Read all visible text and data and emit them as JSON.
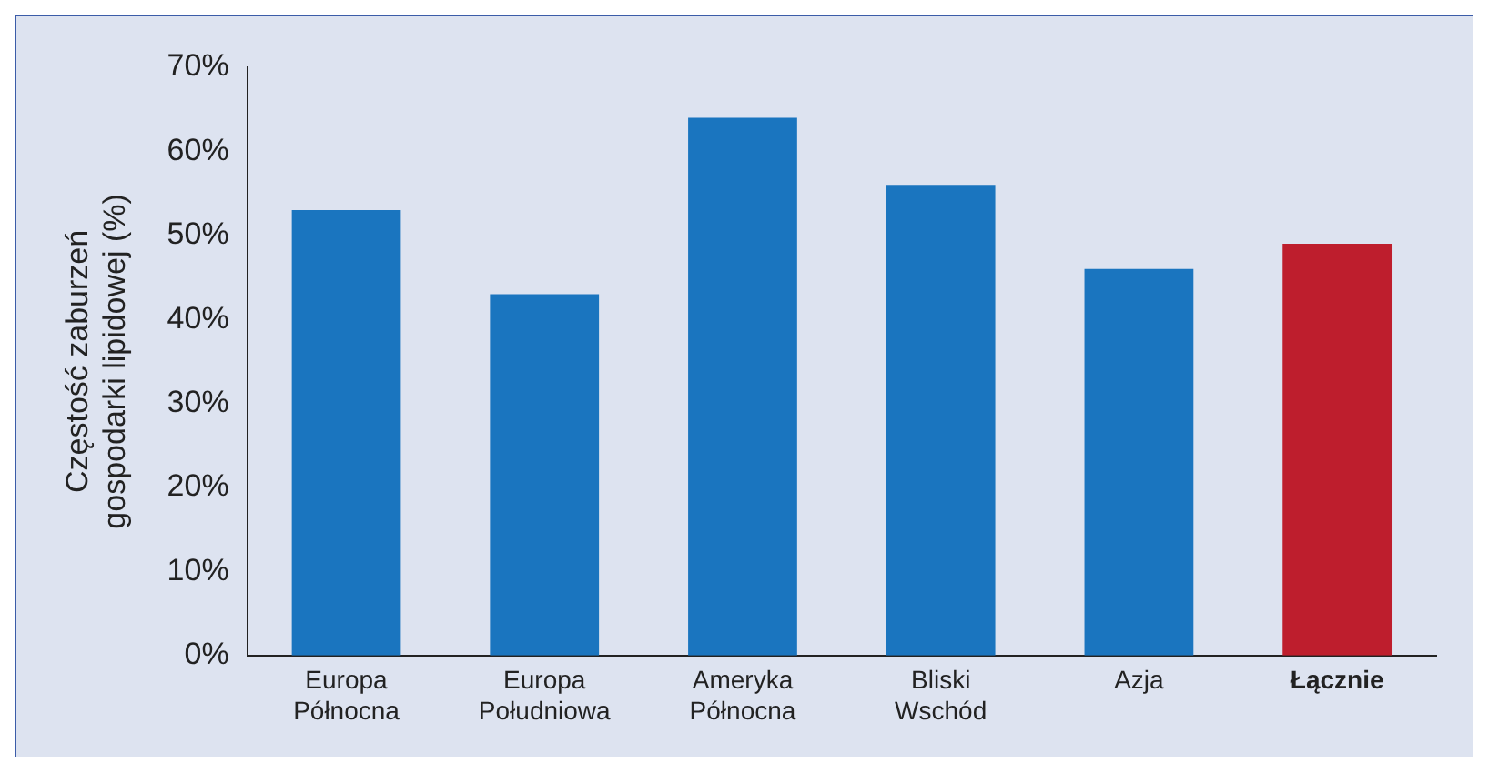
{
  "chart_data": {
    "type": "bar",
    "ylabel": "Częstość zaburzeń gospodarki lipidowej (%)",
    "categories": [
      "Europa Północna",
      "Europa Południowa",
      "Ameryka Północna",
      "Bliski Wschód",
      "Azja",
      "Łącznie"
    ],
    "values": [
      53,
      43,
      64,
      56,
      46,
      49
    ],
    "colors": [
      "#1a75bf",
      "#1a75bf",
      "#1a75bf",
      "#1a75bf",
      "#1a75bf",
      "#be1e2d"
    ],
    "ylim": [
      0,
      70
    ],
    "yticks": [
      {
        "value": 0,
        "label": "0%"
      },
      {
        "value": 10,
        "label": "10%"
      },
      {
        "value": 20,
        "label": "20%"
      },
      {
        "value": 30,
        "label": "30%"
      },
      {
        "value": 40,
        "label": "40%"
      },
      {
        "value": 50,
        "label": "50%"
      },
      {
        "value": 60,
        "label": "60%"
      },
      {
        "value": 70,
        "label": "70%"
      }
    ],
    "grid": false,
    "legend": false
  }
}
